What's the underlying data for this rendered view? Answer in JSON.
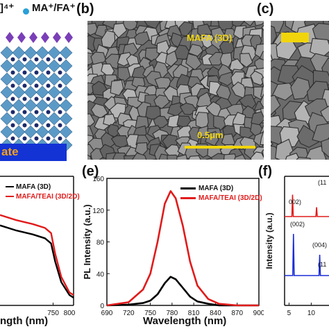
{
  "panel_a": {
    "legend_top_left": "]⁴⁺",
    "legend_top_right": "MA⁺/FA⁺",
    "substrate_label": "ate",
    "colors": {
      "octahedron": "#4a90c2",
      "cation": "#7a3fb8",
      "substrate": "#1433d4",
      "substrate_text": "#f5a11a"
    }
  },
  "panel_b": {
    "letter": "(b)",
    "film_label": "MAFA (3D)",
    "scale_label": "0.5μm"
  },
  "panel_c": {
    "letter": "(c)"
  },
  "panel_e": {
    "letter": "(e)",
    "ylabel": "PL Intensity (a.u.)",
    "xlabel": "Wavelength (nm)",
    "yticks": [
      "0",
      "40",
      "80",
      "120",
      "160"
    ],
    "xticks": [
      "690",
      "720",
      "750",
      "780",
      "810",
      "840",
      "870",
      "900"
    ]
  },
  "panel_d": {
    "xlabel": "ngth (nm)",
    "xticks": [
      "750",
      "800"
    ]
  },
  "panel_f": {
    "letter": "(f)",
    "ylabel": "Intensity (a.u.)",
    "annotations": [
      "(11",
      "002)",
      "(002)",
      "(004)",
      "(11"
    ],
    "xticks": [
      "5",
      "10"
    ]
  },
  "legends": {
    "d": [
      "MAFA (3D)",
      "MAFA/TEAI (3D/2D)"
    ],
    "e": [
      "MAFA (3D)",
      "MAFA/TEAI (3D/2D)"
    ]
  },
  "chart_data": [
    {
      "type": "line",
      "panel": "e",
      "xlabel": "Wavelength (nm)",
      "ylabel": "PL Intensity (a.u.)",
      "xlim": [
        690,
        900
      ],
      "ylim": [
        0,
        160
      ],
      "x": [
        690,
        720,
        740,
        750,
        760,
        770,
        778,
        785,
        795,
        805,
        815,
        830,
        845,
        870,
        900
      ],
      "series": [
        {
          "name": "MAFA (3D)",
          "color": "#000000",
          "values": [
            0,
            1,
            3,
            6,
            14,
            28,
            36,
            33,
            22,
            11,
            5,
            2,
            0,
            0,
            0
          ]
        },
        {
          "name": "MAFA/TEAI (3D/2D)",
          "color": "#e11b1b",
          "values": [
            0,
            4,
            20,
            40,
            80,
            128,
            144,
            135,
            100,
            55,
            25,
            8,
            2,
            0,
            0
          ]
        }
      ]
    },
    {
      "type": "line",
      "panel": "d",
      "xlabel": "ngth (nm)",
      "xlim": [
        620,
        800
      ],
      "x": [
        620,
        660,
        700,
        730,
        745,
        755,
        770,
        790,
        800
      ],
      "series": [
        {
          "name": "MAFA (3D)",
          "color": "#000000",
          "values": [
            0.62,
            0.58,
            0.55,
            0.52,
            0.48,
            0.34,
            0.18,
            0.08,
            0.06
          ]
        },
        {
          "name": "MAFA/TEAI (3D/2D)",
          "color": "#e11b1b",
          "values": [
            0.7,
            0.66,
            0.63,
            0.6,
            0.56,
            0.4,
            0.22,
            0.1,
            0.08
          ]
        }
      ]
    },
    {
      "type": "line",
      "panel": "f",
      "ylabel": "Intensity (a.u.)",
      "xlim": [
        4,
        14
      ],
      "series": [
        {
          "name": "MAFA/TEAI (3D/2D)",
          "color": "#e11b1b",
          "peaks": [
            {
              "x": 5.8,
              "h": 0.7
            },
            {
              "x": 11.2,
              "h": 0.3
            }
          ]
        },
        {
          "name": "MAFA (3D)",
          "color": "#1a2dd6",
          "peaks": [
            {
              "x": 6.0,
              "h": 1.0
            },
            {
              "x": 11.9,
              "h": 0.5
            }
          ]
        }
      ]
    }
  ]
}
